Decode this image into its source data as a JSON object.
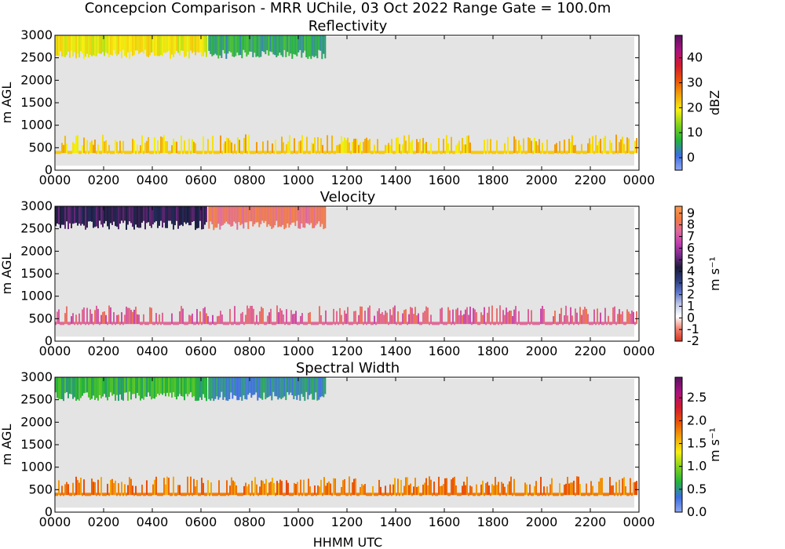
{
  "figure": {
    "suptitle": "Concepcion Comparison - MRR UChile, 03 Oct 2022 Range Gate = 100.0m",
    "xlabel": "HHMM UTC"
  },
  "colors": {
    "background_no_data": "#e4e4e4",
    "echo_layer_low": "#f2e21a",
    "echo_layer_high": "#a8d640"
  },
  "chart_data": [
    {
      "type": "heatmap",
      "title": "Reflectivity",
      "ylabel": "m AGL",
      "x_ticks": [
        "0000",
        "0200",
        "0400",
        "0600",
        "0800",
        "1000",
        "1200",
        "1400",
        "1600",
        "1800",
        "2000",
        "2200",
        "0000"
      ],
      "y_ticks": [
        "0",
        "500",
        "1000",
        "1500",
        "2000",
        "2500",
        "3000"
      ],
      "xlim_hours": [
        0,
        24
      ],
      "ylim": [
        0,
        3000
      ],
      "colorbar": {
        "label": "dBZ",
        "range": [
          -5,
          49
        ],
        "ticks": [
          "0",
          "10",
          "20",
          "30",
          "40"
        ],
        "tick_values": [
          0,
          10,
          20,
          30,
          40
        ],
        "stops": [
          "#8fa8f0",
          "#3a6de0",
          "#23b33c",
          "#7fd21c",
          "#f7ef11",
          "#f2a50a",
          "#ea5208",
          "#d21a30",
          "#a8127e",
          "#5a1260"
        ]
      },
      "layers": [
        {
          "name": "upper_echo",
          "height_range_m": [
            2600,
            3000
          ],
          "segments": [
            {
              "t_start_h": 0.0,
              "t_end_h": 6.2,
              "value": 19
            },
            {
              "t_start_h": 6.3,
              "t_end_h": 11.1,
              "value": 6
            }
          ]
        },
        {
          "name": "lower_echo",
          "height_range_m": [
            300,
            650
          ],
          "segments": [
            {
              "t_start_h": 0.0,
              "t_end_h": 23.9,
              "value": 22
            }
          ]
        }
      ]
    },
    {
      "type": "heatmap",
      "title": "Velocity",
      "ylabel": "m $s^{-1}$",
      "x_ticks": [
        "0000",
        "0200",
        "0400",
        "0600",
        "0800",
        "1000",
        "1200",
        "1400",
        "1600",
        "1800",
        "2000",
        "2200",
        "0000"
      ],
      "y_ticks": [
        "0",
        "500",
        "1000",
        "1500",
        "2000",
        "2500",
        "3000"
      ],
      "xlim_hours": [
        0,
        24
      ],
      "ylim": [
        0,
        3000
      ],
      "ylabel_axis": "m AGL",
      "colorbar": {
        "label": "m $s^{-1}$",
        "range": [
          -2,
          9.6
        ],
        "ticks": [
          "-2",
          "-1",
          "0",
          "1",
          "2",
          "3",
          "4",
          "5",
          "6",
          "7",
          "8",
          "9"
        ],
        "tick_values": [
          -2,
          -1,
          0,
          1,
          2,
          3,
          4,
          5,
          6,
          7,
          8,
          9
        ],
        "stops": [
          "#d53420",
          "#f08070",
          "#ffffff",
          "#c0c8e8",
          "#5a74c8",
          "#2a3a7a",
          "#1c1c3a",
          "#7a2a8a",
          "#c040b0",
          "#e06a9a",
          "#f07a40",
          "#f89a50"
        ]
      },
      "layers": [
        {
          "name": "upper_echo",
          "height_range_m": [
            2600,
            3000
          ],
          "segments": [
            {
              "t_start_h": 0.0,
              "t_end_h": 6.2,
              "value": 4.5
            },
            {
              "t_start_h": 6.3,
              "t_end_h": 11.1,
              "value": 8
            }
          ]
        },
        {
          "name": "lower_echo",
          "height_range_m": [
            300,
            650
          ],
          "segments": [
            {
              "t_start_h": 0.0,
              "t_end_h": 23.9,
              "value": 7.5
            }
          ]
        }
      ]
    },
    {
      "type": "heatmap",
      "title": "Spectral Width",
      "ylabel": "m $s^{-1}$",
      "x_ticks": [
        "0000",
        "0200",
        "0400",
        "0600",
        "0800",
        "1000",
        "1200",
        "1400",
        "1600",
        "1800",
        "2000",
        "2200",
        "0000"
      ],
      "y_ticks": [
        "0",
        "500",
        "1000",
        "1500",
        "2000",
        "2500",
        "3000"
      ],
      "xlim_hours": [
        0,
        24
      ],
      "ylim": [
        0,
        3000
      ],
      "ylabel_axis": "m AGL",
      "colorbar": {
        "label": "m $s^{-1}$",
        "range": [
          0,
          2.95
        ],
        "ticks": [
          "0.0",
          "0.5",
          "1.0",
          "1.5",
          "2.0",
          "2.5"
        ],
        "tick_values": [
          0,
          0.5,
          1.0,
          1.5,
          2.0,
          2.5
        ],
        "stops": [
          "#8fa8f0",
          "#3a6de0",
          "#23b33c",
          "#7fd21c",
          "#f7ef11",
          "#f2a50a",
          "#ea5208",
          "#d21a30",
          "#a8127e",
          "#5a1260"
        ]
      },
      "layers": [
        {
          "name": "upper_echo",
          "height_range_m": [
            2600,
            3000
          ],
          "segments": [
            {
              "t_start_h": 0.0,
              "t_end_h": 6.2,
              "value": 0.7
            },
            {
              "t_start_h": 6.3,
              "t_end_h": 11.1,
              "value": 0.45
            }
          ]
        },
        {
          "name": "lower_echo",
          "height_range_m": [
            300,
            650
          ],
          "segments": [
            {
              "t_start_h": 0.0,
              "t_end_h": 23.9,
              "value": 1.8
            }
          ]
        }
      ]
    }
  ]
}
